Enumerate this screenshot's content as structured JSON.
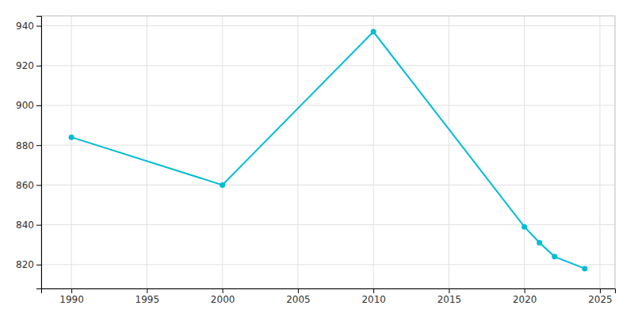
{
  "chart_data": {
    "type": "line",
    "x": [
      1990,
      2000,
      2010,
      2020,
      2021,
      2022,
      2024
    ],
    "values": [
      884,
      860,
      937,
      839,
      831,
      824,
      818
    ],
    "color": "#00BCD4",
    "marker": "circle",
    "xlim": [
      1988,
      2026
    ],
    "ylim": [
      808,
      945
    ],
    "xticks": [
      1990,
      1995,
      2000,
      2005,
      2010,
      2015,
      2020,
      2025
    ],
    "yticks": [
      820,
      840,
      860,
      880,
      900,
      920,
      940
    ],
    "grid": true
  }
}
